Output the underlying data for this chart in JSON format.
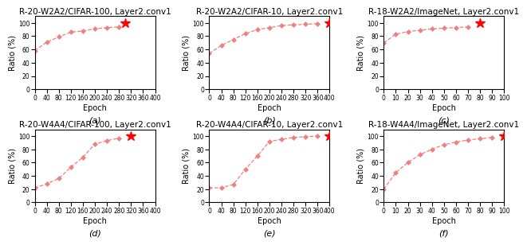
{
  "subplots": [
    {
      "title": "R-20-W2A2/CIFAR-100, Layer2.conv1",
      "label": "(a)",
      "xlabel": "Epoch",
      "ylabel": "Ratio (%)",
      "xlim": [
        0,
        400
      ],
      "ylim": [
        0,
        110
      ],
      "xticks": [
        0,
        40,
        80,
        120,
        160,
        200,
        240,
        280,
        320,
        360,
        400
      ],
      "yticks": [
        0,
        20,
        40,
        60,
        80,
        100
      ],
      "x": [
        0,
        40,
        80,
        120,
        160,
        200,
        240,
        280
      ],
      "y": [
        58,
        71,
        79,
        86,
        88,
        91,
        93,
        94
      ],
      "star_x": 300,
      "star_y": 100
    },
    {
      "title": "R-20-W2A2/CIFAR-10, Layer2.conv1",
      "label": "(b)",
      "xlabel": "Epoch",
      "ylabel": "Ratio (%)",
      "xlim": [
        0,
        400
      ],
      "ylim": [
        0,
        110
      ],
      "xticks": [
        0,
        40,
        80,
        120,
        160,
        200,
        240,
        280,
        320,
        360,
        400
      ],
      "yticks": [
        0,
        20,
        40,
        60,
        80,
        100
      ],
      "x": [
        0,
        40,
        80,
        120,
        160,
        200,
        240,
        280,
        320,
        360
      ],
      "y": [
        54,
        66,
        75,
        84,
        90,
        93,
        96,
        97,
        98,
        99
      ],
      "star_x": 400,
      "star_y": 100
    },
    {
      "title": "R-18-W2A2/ImageNet, Layer2.conv1",
      "label": "(c)",
      "xlabel": "Epoch",
      "ylabel": "Ratio (%)",
      "xlim": [
        0,
        100
      ],
      "ylim": [
        0,
        110
      ],
      "xticks": [
        0,
        10,
        20,
        30,
        40,
        50,
        60,
        70,
        80,
        90,
        100
      ],
      "yticks": [
        0,
        20,
        40,
        60,
        80,
        100
      ],
      "x": [
        0,
        10,
        20,
        30,
        40,
        50,
        60,
        70
      ],
      "y": [
        70,
        83,
        87,
        89,
        91,
        92,
        93,
        94
      ],
      "star_x": 80,
      "star_y": 100
    },
    {
      "title": "R-20-W4A4/CIFAR-100, Layer2.conv1",
      "label": "(d)",
      "xlabel": "Epoch",
      "ylabel": "Ratio (%)",
      "xlim": [
        0,
        400
      ],
      "ylim": [
        0,
        110
      ],
      "xticks": [
        0,
        40,
        80,
        120,
        160,
        200,
        240,
        280,
        320,
        360,
        400
      ],
      "yticks": [
        0,
        20,
        40,
        60,
        80,
        100
      ],
      "x": [
        0,
        40,
        80,
        120,
        160,
        200,
        240,
        280
      ],
      "y": [
        22,
        28,
        36,
        53,
        68,
        88,
        93,
        97
      ],
      "star_x": 320,
      "star_y": 100
    },
    {
      "title": "R-20-W4A4/CIFAR-10, Layer2.conv1",
      "label": "(e)",
      "xlabel": "Epoch",
      "ylabel": "Ratio (%)",
      "xlim": [
        0,
        400
      ],
      "ylim": [
        0,
        110
      ],
      "xticks": [
        0,
        40,
        80,
        120,
        160,
        200,
        240,
        280,
        320,
        360,
        400
      ],
      "yticks": [
        0,
        20,
        40,
        60,
        80,
        100
      ],
      "x": [
        0,
        40,
        80,
        120,
        160,
        200,
        240,
        280,
        320,
        360
      ],
      "y": [
        22,
        22,
        27,
        50,
        70,
        92,
        95,
        98,
        99,
        100
      ],
      "star_x": 400,
      "star_y": 100
    },
    {
      "title": "R-18-W4A4/ImageNet, Layer2.conv1",
      "label": "(f)",
      "xlabel": "Epoch",
      "ylabel": "Ratio (%)",
      "xlim": [
        0,
        100
      ],
      "ylim": [
        0,
        110
      ],
      "xticks": [
        0,
        10,
        20,
        30,
        40,
        50,
        60,
        70,
        80,
        90,
        100
      ],
      "yticks": [
        0,
        20,
        40,
        60,
        80,
        100
      ],
      "x": [
        0,
        10,
        20,
        30,
        40,
        50,
        60,
        70,
        80,
        90
      ],
      "y": [
        20,
        45,
        60,
        72,
        80,
        87,
        91,
        94,
        96,
        98
      ],
      "star_x": 100,
      "star_y": 100
    }
  ],
  "line_color": "#f08080",
  "star_color": "#ff0000",
  "line_style": "--",
  "marker": "D",
  "marker_size": 3,
  "title_fontsize": 7.5,
  "label_fontsize": 7,
  "tick_fontsize": 5.5,
  "sublabel_fontsize": 8,
  "linewidth": 0.9
}
